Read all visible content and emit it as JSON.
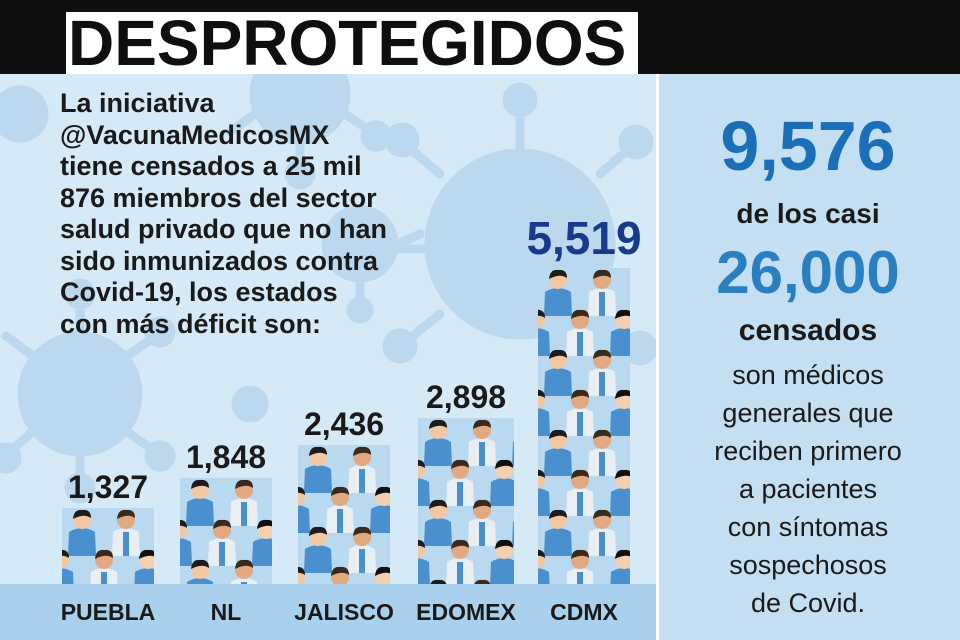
{
  "header": {
    "title": "DESPROTEGIDOS"
  },
  "intro": {
    "lines": [
      "La iniciativa",
      "@VacunaMedicosMX",
      "tiene censados a 25 mil",
      "876 miembros del sector",
      "salud privado que no han",
      "sido inmunizados contra",
      "Covid-19, los estados",
      "con más déficit son:"
    ]
  },
  "sidebar": {
    "big_number": "9,576",
    "of_text": "de los casi",
    "total": "26,000",
    "census_word": "censados",
    "body_lines": [
      "son médicos",
      "generales que",
      "reciben primero",
      "a pacientes",
      "con síntomas",
      "sospechosos",
      "de Covid."
    ]
  },
  "colors": {
    "header_bg": "#0f0f10",
    "panel_bg": "#d6e9f6",
    "sidebar_bg": "#c3dff1",
    "axis_bar": "#a9d0ec",
    "highlight_value": "#173a8c",
    "stat_blue": "#1a6fb8",
    "scrub_blue": "#4a90cf",
    "lab_coat": "#e9eef3"
  },
  "chart_data": {
    "type": "bar",
    "title": "",
    "categories": [
      "PUEBLA",
      "NL",
      "JALISCO",
      "EDOMEX",
      "CDMX"
    ],
    "values": [
      1327,
      1848,
      2436,
      2898,
      5519
    ],
    "value_labels": [
      "1,327",
      "1,848",
      "2,436",
      "2,898",
      "5,519"
    ],
    "highlight_index": 4,
    "xlabel": "",
    "ylabel": "",
    "ylim": [
      0,
      5519
    ],
    "grid": false,
    "bar_style": "stacked illustrated health workers"
  }
}
